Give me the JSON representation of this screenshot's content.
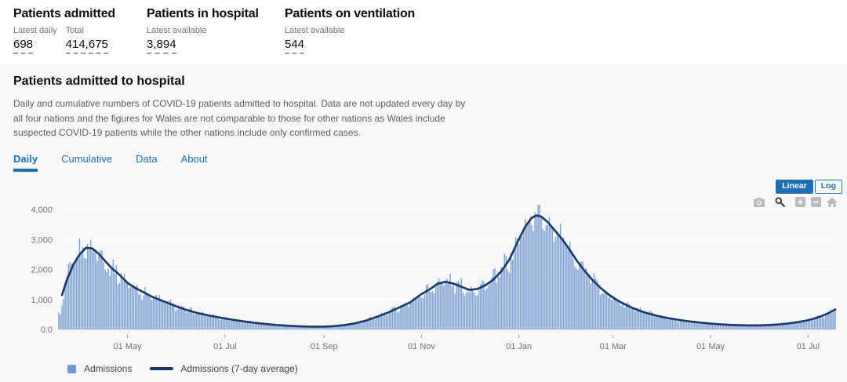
{
  "summary": {
    "cards": [
      {
        "title": "Patients admitted",
        "metrics": [
          {
            "label": "Latest daily",
            "value": "698"
          },
          {
            "label": "Total",
            "value": "414,675"
          }
        ]
      },
      {
        "title": "Patients in hospital",
        "metrics": [
          {
            "label": "Latest available",
            "value": "3,894"
          }
        ]
      },
      {
        "title": "Patients on ventilation",
        "metrics": [
          {
            "label": "Latest available",
            "value": "544"
          }
        ]
      }
    ]
  },
  "card": {
    "title": "Patients admitted to hospital",
    "description": "Daily and cumulative numbers of COVID-19 patients admitted to hospital. Data are not updated every day by all four nations and the figures for Wales are not comparable to those for other nations as Wales include suspected COVID-19 patients while the other nations include only confirmed cases.",
    "tabs": [
      {
        "label": "Daily",
        "active": true
      },
      {
        "label": "Cumulative",
        "active": false
      },
      {
        "label": "Data",
        "active": false
      },
      {
        "label": "About",
        "active": false
      }
    ],
    "scale_toggle": [
      {
        "label": "Linear",
        "active": true
      },
      {
        "label": "Log",
        "active": false
      }
    ],
    "toolbar_icons": [
      "camera-icon",
      "zoom-icon",
      "zoom-in-icon",
      "zoom-out-icon",
      "home-icon"
    ]
  },
  "chart_data": {
    "type": "bar",
    "title": "Daily COVID-19 hospital admissions with 7-day average",
    "x_range": [
      "2020-03-19",
      "2021-07-18"
    ],
    "ylim": [
      0,
      4450
    ],
    "grid": "horizontal",
    "legend_position": "bottom-left",
    "y_ticks": [
      {
        "value": 0,
        "label": "0.0"
      },
      {
        "value": 1000,
        "label": "1,000"
      },
      {
        "value": 2000,
        "label": "2,000"
      },
      {
        "value": 3000,
        "label": "3,000"
      },
      {
        "value": 4000,
        "label": "4,000"
      }
    ],
    "x_ticks": [
      {
        "date": "2020-05-01",
        "label": "01 May"
      },
      {
        "date": "2020-07-01",
        "label": "01 Jul"
      },
      {
        "date": "2020-09-01",
        "label": "01 Sep"
      },
      {
        "date": "2020-11-01",
        "label": "01 Nov"
      },
      {
        "date": "2021-01-01",
        "label": "01 Jan"
      },
      {
        "date": "2021-03-01",
        "label": "01 Mar"
      },
      {
        "date": "2021-05-01",
        "label": "01 May"
      },
      {
        "date": "2021-07-01",
        "label": "01 Jul"
      }
    ],
    "series": [
      {
        "name": "Admissions",
        "type": "bar",
        "color": "#7298cf"
      },
      {
        "name": "Admissions (7-day average)",
        "type": "line",
        "color": "#1a3769",
        "points": [
          [
            "2020-03-20",
            980
          ],
          [
            "2020-03-24",
            1650
          ],
          [
            "2020-03-28",
            2150
          ],
          [
            "2020-04-01",
            2500
          ],
          [
            "2020-04-05",
            2720
          ],
          [
            "2020-04-09",
            2700
          ],
          [
            "2020-04-13",
            2520
          ],
          [
            "2020-04-17",
            2280
          ],
          [
            "2020-04-21",
            2050
          ],
          [
            "2020-04-26",
            1820
          ],
          [
            "2020-05-01",
            1550
          ],
          [
            "2020-05-06",
            1380
          ],
          [
            "2020-05-11",
            1240
          ],
          [
            "2020-05-16",
            1100
          ],
          [
            "2020-05-21",
            990
          ],
          [
            "2020-05-26",
            890
          ],
          [
            "2020-06-01",
            760
          ],
          [
            "2020-06-07",
            650
          ],
          [
            "2020-06-14",
            545
          ],
          [
            "2020-06-21",
            465
          ],
          [
            "2020-06-28",
            395
          ],
          [
            "2020-07-05",
            330
          ],
          [
            "2020-07-12",
            275
          ],
          [
            "2020-07-19",
            225
          ],
          [
            "2020-07-26",
            185
          ],
          [
            "2020-08-02",
            150
          ],
          [
            "2020-08-09",
            125
          ],
          [
            "2020-08-16",
            105
          ],
          [
            "2020-08-23",
            95
          ],
          [
            "2020-08-30",
            92
          ],
          [
            "2020-09-06",
            105
          ],
          [
            "2020-09-13",
            140
          ],
          [
            "2020-09-20",
            200
          ],
          [
            "2020-09-27",
            290
          ],
          [
            "2020-10-04",
            420
          ],
          [
            "2020-10-11",
            560
          ],
          [
            "2020-10-18",
            730
          ],
          [
            "2020-10-25",
            905
          ],
          [
            "2020-11-01",
            1180
          ],
          [
            "2020-11-06",
            1330
          ],
          [
            "2020-11-11",
            1520
          ],
          [
            "2020-11-16",
            1590
          ],
          [
            "2020-11-21",
            1530
          ],
          [
            "2020-11-26",
            1420
          ],
          [
            "2020-12-01",
            1320
          ],
          [
            "2020-12-06",
            1350
          ],
          [
            "2020-12-11",
            1470
          ],
          [
            "2020-12-16",
            1660
          ],
          [
            "2020-12-21",
            1940
          ],
          [
            "2020-12-26",
            2330
          ],
          [
            "2020-12-31",
            2900
          ],
          [
            "2021-01-05",
            3430
          ],
          [
            "2021-01-09",
            3720
          ],
          [
            "2021-01-12",
            3800
          ],
          [
            "2021-01-15",
            3760
          ],
          [
            "2021-01-19",
            3580
          ],
          [
            "2021-01-23",
            3330
          ],
          [
            "2021-01-27",
            3080
          ],
          [
            "2021-02-01",
            2720
          ],
          [
            "2021-02-06",
            2310
          ],
          [
            "2021-02-11",
            1960
          ],
          [
            "2021-02-16",
            1650
          ],
          [
            "2021-02-21",
            1390
          ],
          [
            "2021-02-26",
            1170
          ],
          [
            "2021-03-03",
            990
          ],
          [
            "2021-03-08",
            845
          ],
          [
            "2021-03-13",
            720
          ],
          [
            "2021-03-18",
            615
          ],
          [
            "2021-03-23",
            530
          ],
          [
            "2021-03-28",
            460
          ],
          [
            "2021-04-02",
            400
          ],
          [
            "2021-04-08",
            345
          ],
          [
            "2021-04-14",
            295
          ],
          [
            "2021-04-20",
            255
          ],
          [
            "2021-04-26",
            220
          ],
          [
            "2021-05-02",
            190
          ],
          [
            "2021-05-08",
            168
          ],
          [
            "2021-05-14",
            150
          ],
          [
            "2021-05-20",
            140
          ],
          [
            "2021-05-26",
            134
          ],
          [
            "2021-06-01",
            136
          ],
          [
            "2021-06-07",
            148
          ],
          [
            "2021-06-13",
            170
          ],
          [
            "2021-06-19",
            203
          ],
          [
            "2021-06-25",
            248
          ],
          [
            "2021-07-01",
            308
          ],
          [
            "2021-07-05",
            365
          ],
          [
            "2021-07-09",
            435
          ],
          [
            "2021-07-13",
            525
          ],
          [
            "2021-07-16",
            605
          ],
          [
            "2021-07-18",
            670
          ]
        ]
      }
    ]
  },
  "colors": {
    "accent_blue": "#1d70b8",
    "bar": "#7298cf",
    "line": "#1a3769",
    "panel_background": "#f8f8f8",
    "grid": "#ffffff",
    "text": "#0b0c0c",
    "muted": "#6f7478"
  }
}
